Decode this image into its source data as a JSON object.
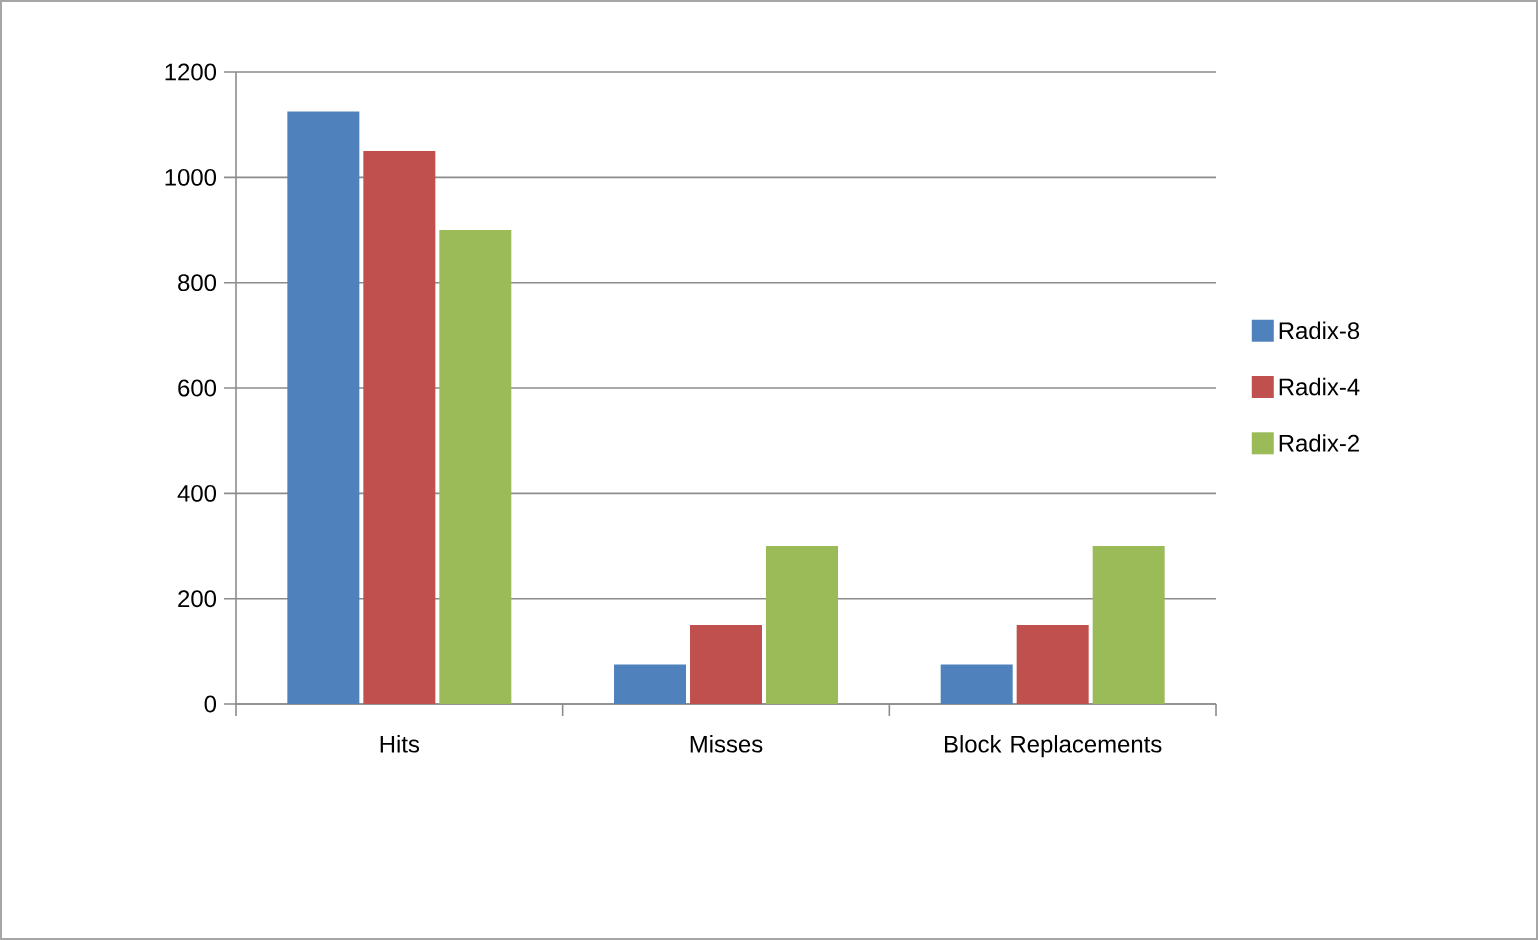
{
  "chart_data": {
    "type": "bar",
    "categories": [
      "Hits",
      "Misses",
      "Block Replacements"
    ],
    "series": [
      {
        "name": "Radix-8",
        "color": "#4f81bd",
        "values": [
          1125,
          75,
          75
        ]
      },
      {
        "name": "Radix-4",
        "color": "#c0504d",
        "values": [
          1050,
          150,
          150
        ]
      },
      {
        "name": "Radix-2",
        "color": "#9bbb59",
        "values": [
          900,
          300,
          300
        ]
      }
    ],
    "ylim": [
      0,
      1200
    ],
    "yticks": [
      0,
      200,
      400,
      600,
      800,
      1000,
      1200
    ],
    "grid": "y",
    "legend": "right"
  }
}
